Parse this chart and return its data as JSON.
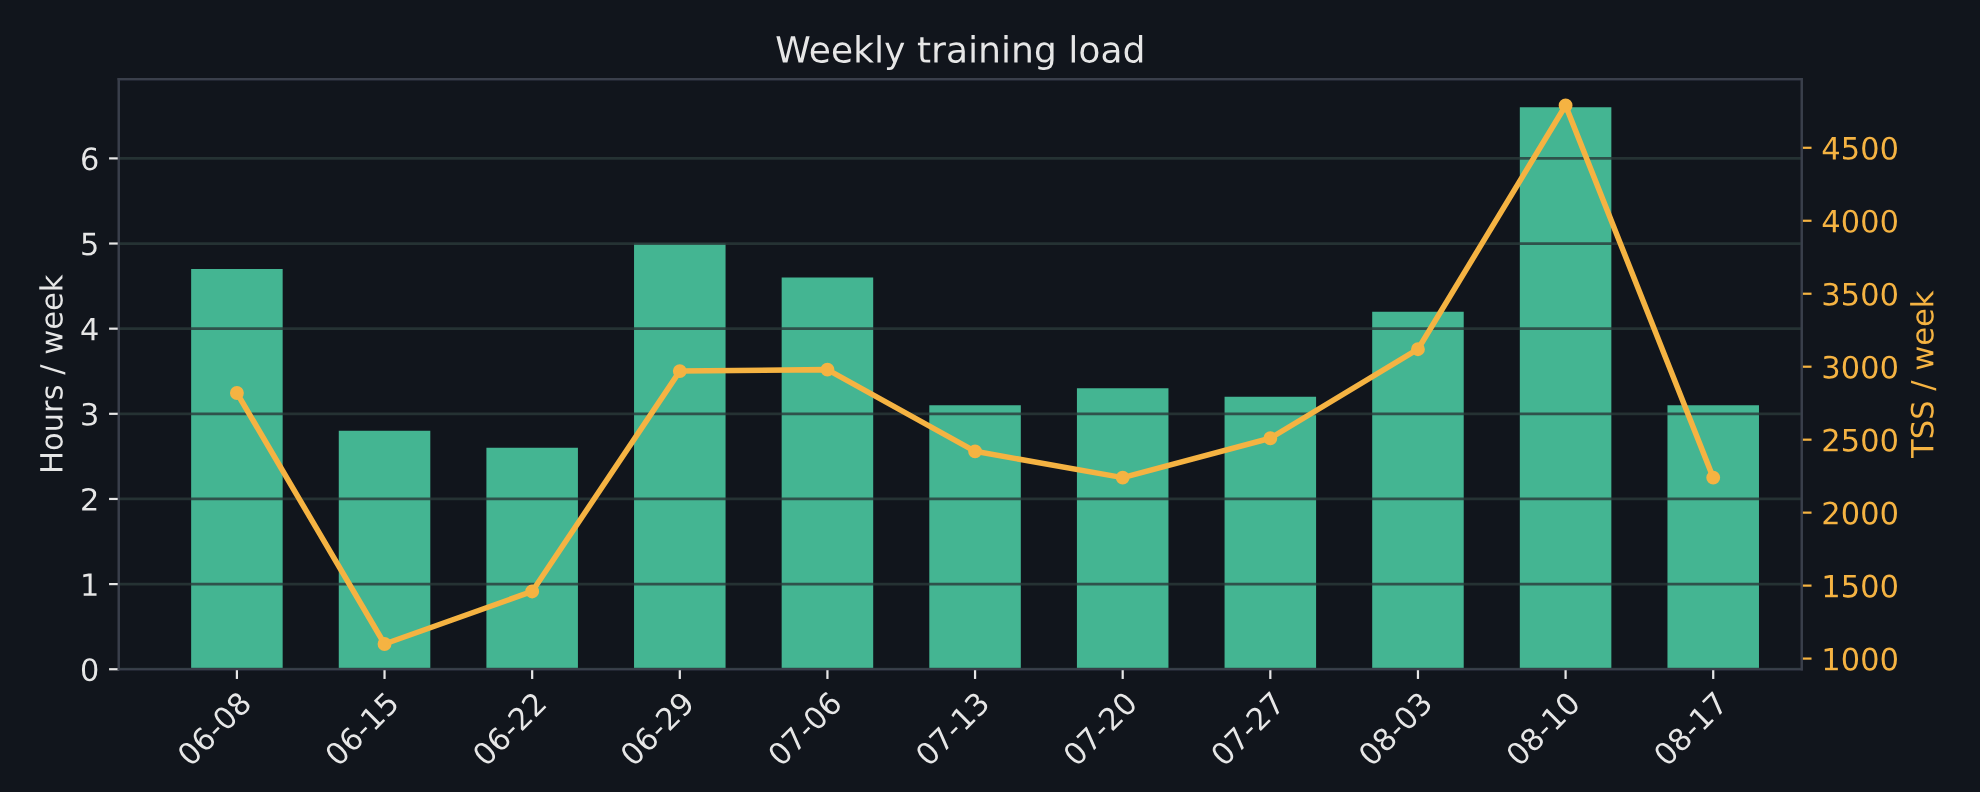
{
  "chart_data": {
    "type": "bar",
    "title": "Weekly training load",
    "ylabel": "Hours / week",
    "y2label": "TSS / week",
    "categories": [
      "06-08",
      "06-15",
      "06-22",
      "06-29",
      "07-06",
      "07-13",
      "07-20",
      "07-27",
      "08-03",
      "08-10",
      "08-17"
    ],
    "series": [
      {
        "color": "#44b592",
        "values": [
          4.7,
          2.8,
          2.6,
          5.0,
          4.6,
          3.1,
          3.3,
          3.2,
          4.2,
          6.6,
          3.1
        ]
      },
      {
        "type": "line",
        "axis": "y2",
        "color": "#f5b342",
        "marker": "circle",
        "line_style": "solid",
        "values": [
          2820,
          1100,
          1460,
          2970,
          2980,
          2420,
          2240,
          2510,
          3120,
          4790,
          2240
        ]
      }
    ],
    "ylim": [
      0,
      6.93
    ],
    "yticks": [
      0,
      1,
      2,
      3,
      4,
      5,
      6
    ],
    "y2lim": [
      927,
      4970
    ],
    "y2ticks": [
      1000,
      1500,
      2000,
      2500,
      3000,
      3500,
      4000,
      4500
    ],
    "grid": "y",
    "legend": false
  }
}
